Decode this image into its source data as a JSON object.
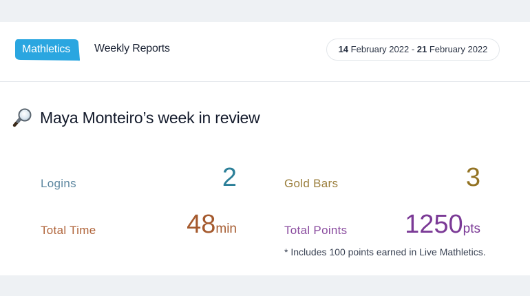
{
  "header": {
    "logo_text": "Mathletics",
    "title": "Weekly Reports",
    "date_range": {
      "start_day": "14",
      "start_rest": " February 2022 - ",
      "end_day": "21",
      "end_rest": " February 2022"
    }
  },
  "review": {
    "title": "Maya Monteiro’s week in review",
    "icon": "magnifying-glass-icon"
  },
  "stats": {
    "logins": {
      "label": "Logins",
      "value": "2"
    },
    "total_time": {
      "label": "Total Time",
      "value": "48",
      "unit": "min"
    },
    "gold_bars": {
      "label": "Gold Bars",
      "value": "3"
    },
    "total_points": {
      "label": "Total Points",
      "value": "1250",
      "unit": "pts"
    }
  },
  "footnote": "* Includes 100 points earned in Live Mathletics.",
  "colors": {
    "logo_blue": "#2aa6e0",
    "logins": "#2b7f98",
    "total_time": "#a55a2e",
    "gold_bars": "#937323",
    "total_points": "#7b3a96"
  }
}
